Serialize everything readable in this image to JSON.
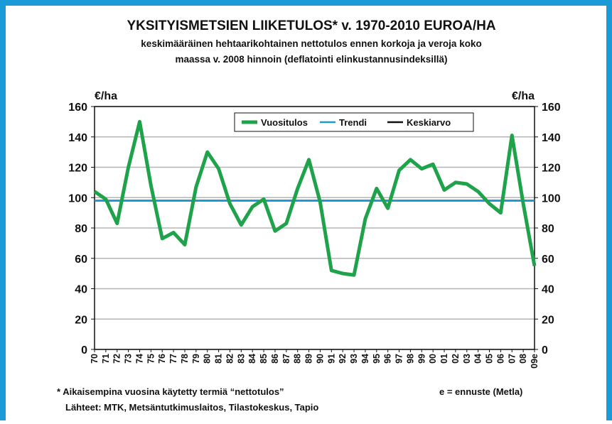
{
  "chart_data": {
    "type": "line",
    "title": "YKSITYISMETSIEN LIIKETULOS* v. 1970-2010  EUROA/HA",
    "subtitle": [
      "keskimääräinen hehtaarikohtainen nettotulos ennen korkoja ja veroja koko",
      "maassa  v. 2008 hinnoin (deflatointi elinkustannusindeksillä)"
    ],
    "y_label": "€/ha",
    "y2_label": "€/ha",
    "categories": [
      "70",
      "71",
      "72",
      "73",
      "74",
      "75",
      "76",
      "77",
      "78",
      "79",
      "80",
      "81",
      "82",
      "83",
      "84",
      "85",
      "86",
      "87",
      "88",
      "89",
      "90",
      "91",
      "92",
      "93",
      "94",
      "95",
      "96",
      "97",
      "98",
      "99",
      "00",
      "01",
      "02",
      "03",
      "04",
      "05",
      "06",
      "07",
      "08",
      "09e"
    ],
    "series": [
      {
        "name": "Keskiarvo",
        "color": "#111111",
        "values": [
          98,
          98,
          98,
          98,
          98,
          98,
          98,
          98,
          98,
          98,
          98,
          98,
          98,
          98,
          98,
          98,
          98,
          98,
          98,
          98,
          98,
          98,
          98,
          98,
          98,
          98,
          98,
          98,
          98,
          98,
          98,
          98,
          98,
          98,
          98,
          98,
          98,
          98,
          98,
          98
        ]
      },
      {
        "name": "Trendi",
        "color": "#1a9ad6",
        "values": [
          98,
          98,
          98,
          98,
          98,
          98,
          98,
          98,
          98,
          98,
          98,
          98,
          98,
          98,
          98,
          98,
          98,
          98,
          98,
          98,
          98,
          98,
          98,
          98,
          98,
          98,
          98,
          98,
          98,
          98,
          98,
          98,
          98,
          98,
          98,
          98,
          98,
          98,
          98,
          98
        ]
      },
      {
        "name": "Vuositulos",
        "color": "#1fa34a",
        "values": [
          104,
          99,
          83,
          120,
          150,
          108,
          73,
          77,
          69,
          107,
          130,
          119,
          96,
          82,
          94,
          99,
          78,
          83,
          106,
          125,
          97,
          52,
          50,
          49,
          86,
          106,
          93,
          118,
          125,
          119,
          122,
          105,
          110,
          109,
          104,
          96,
          90,
          141,
          96,
          55
        ]
      }
    ],
    "legend_order": [
      "Vuositulos",
      "Trendi",
      "Keskiarvo"
    ],
    "ylim": [
      0,
      160
    ],
    "yticks": [
      0,
      20,
      40,
      60,
      80,
      100,
      120,
      140,
      160
    ],
    "y2lim": [
      0,
      160
    ],
    "y2ticks": [
      0,
      20,
      40,
      60,
      80,
      100,
      120,
      140,
      160
    ],
    "grid": true,
    "footnotes": [
      "* Aikaisempina vuosina käytetty termiä “nettotulos”",
      "e = ennuste (Metla)",
      "Lähteet: MTK, Metsäntutkimuslaitos, Tilastokeskus, Tapio"
    ]
  }
}
